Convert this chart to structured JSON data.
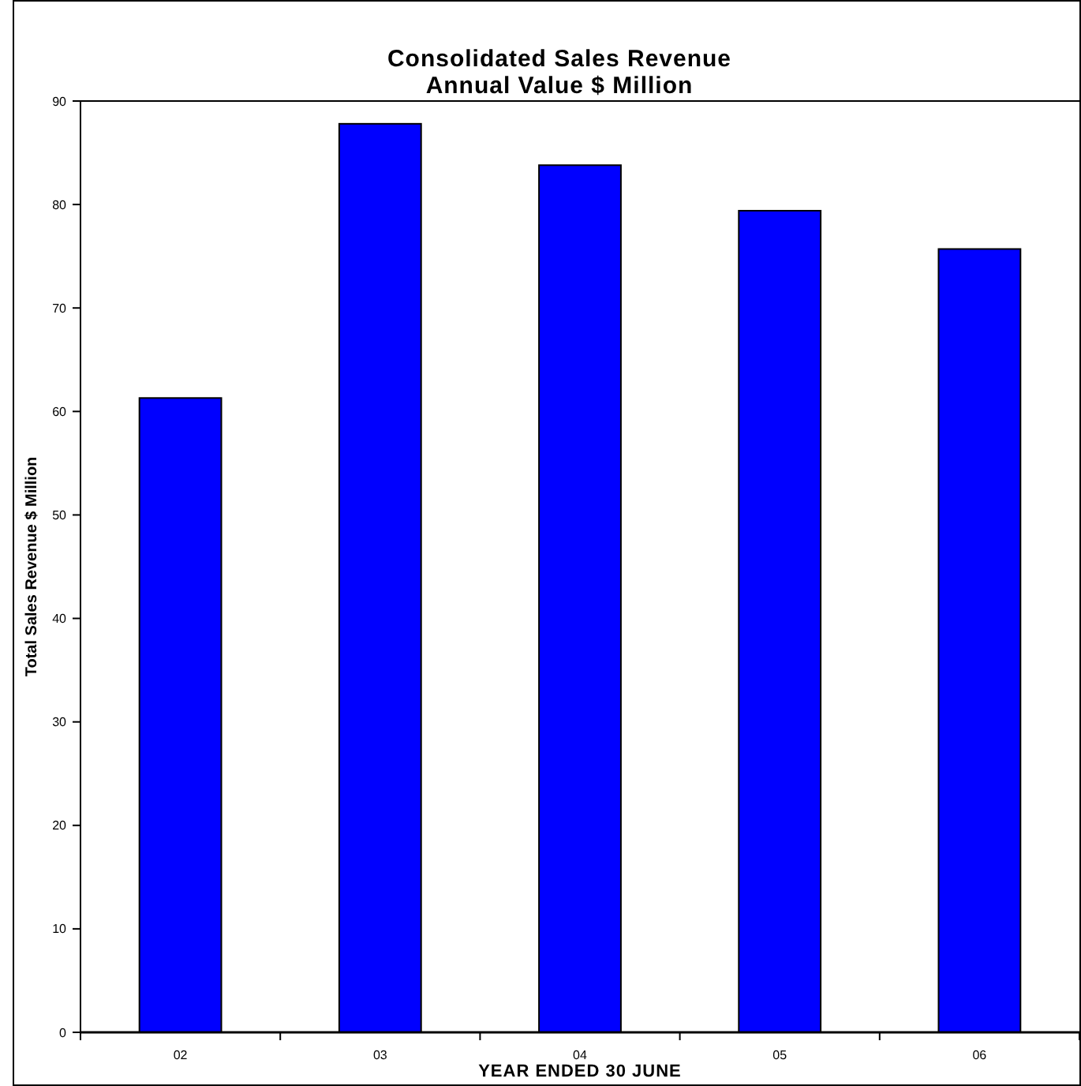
{
  "chart_data": {
    "type": "bar",
    "title": "Consolidated Sales Revenue\nAnnual Value $ Million",
    "xlabel": "YEAR ENDED 30 JUNE",
    "ylabel": "Total Sales Revenue $ Million",
    "categories": [
      "02",
      "03",
      "04",
      "05",
      "06"
    ],
    "values": [
      61.3,
      87.8,
      83.8,
      79.4,
      75.7
    ],
    "color": "#0000ff",
    "ylim": [
      0,
      90
    ],
    "yticks": [
      0,
      10,
      20,
      30,
      40,
      50,
      60,
      70,
      80,
      90
    ],
    "grid": false
  }
}
